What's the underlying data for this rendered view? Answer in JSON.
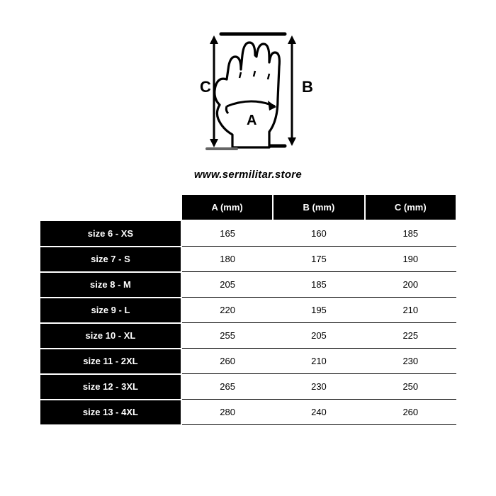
{
  "diagram": {
    "label_a": "A",
    "label_b": "B",
    "label_c": "C",
    "stroke_color": "#000000",
    "stroke_width_main": 3.5,
    "stroke_width_arrow": 3,
    "hand_fill": "#ffffff"
  },
  "website": "www.sermilitar.store",
  "table": {
    "columns": [
      "A  (mm)",
      "B  (mm)",
      "C (mm)"
    ],
    "rows": [
      {
        "size": "size 6 - XS",
        "a": "165",
        "b": "160",
        "c": "185"
      },
      {
        "size": "size 7 - S",
        "a": "180",
        "b": "175",
        "c": "190"
      },
      {
        "size": "size 8 - M",
        "a": "205",
        "b": "185",
        "c": "200"
      },
      {
        "size": "size 9 - L",
        "a": "220",
        "b": "195",
        "c": "210"
      },
      {
        "size": "size 10 - XL",
        "a": "255",
        "b": "205",
        "c": "225"
      },
      {
        "size": "size 11 - 2XL",
        "a": "260",
        "b": "210",
        "c": "230"
      },
      {
        "size": "size 12 - 3XL",
        "a": "265",
        "b": "230",
        "c": "250"
      },
      {
        "size": "size 13 - 4XL",
        "a": "280",
        "b": "240",
        "c": "260"
      }
    ],
    "header_bg": "#000000",
    "header_fg": "#ffffff",
    "cell_border": "#000000",
    "cell_fg": "#000000",
    "font_size_header": 13,
    "font_size_cell": 13
  }
}
